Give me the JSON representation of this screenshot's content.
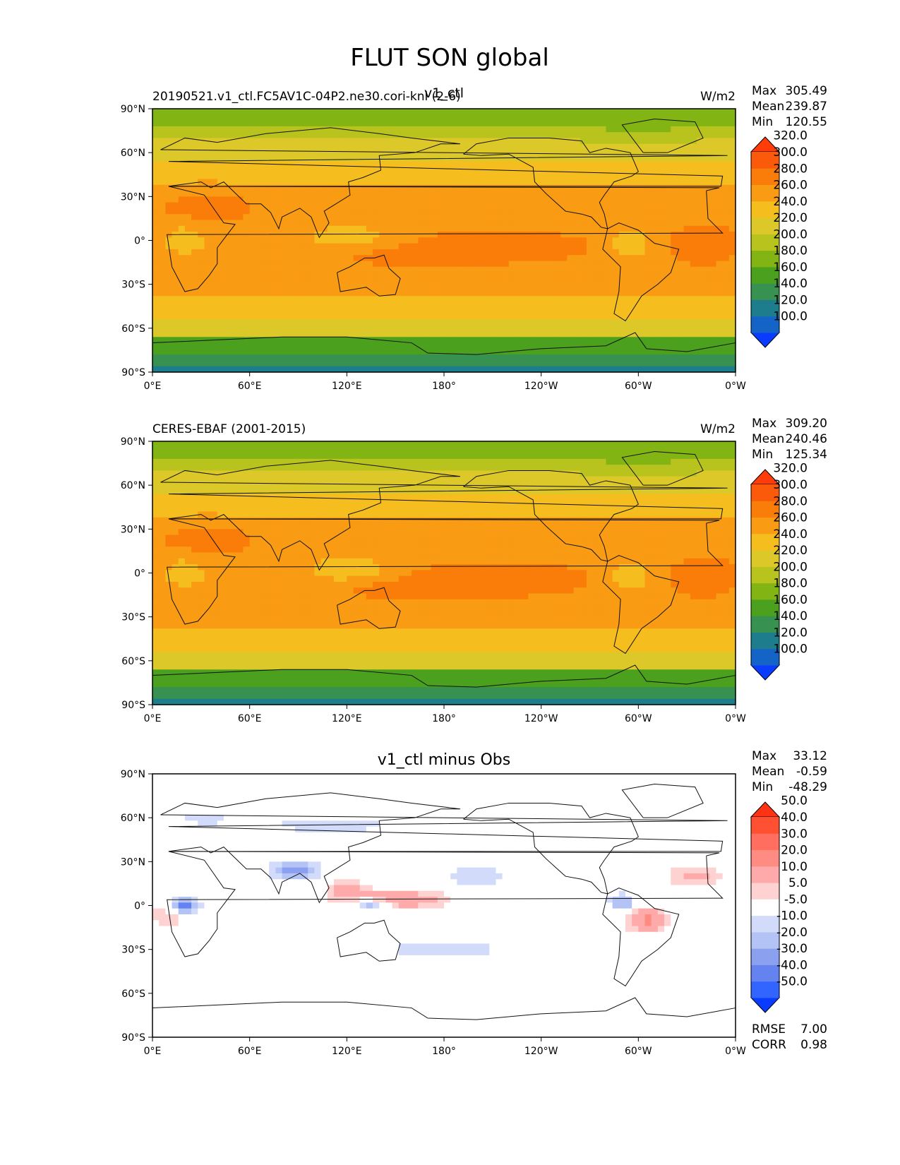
{
  "figure_title": "FLUT SON global",
  "axis": {
    "lat_ticks": [
      "90°N",
      "60°N",
      "30°N",
      "0°",
      "30°S",
      "60°S",
      "90°S"
    ],
    "lon_ticks": [
      "0°E",
      "60°E",
      "120°E",
      "180°",
      "120°W",
      "60°W",
      "0°W"
    ]
  },
  "stat_labels": {
    "max": "Max",
    "mean": "Mean",
    "min": "Min",
    "rmse": "RMSE",
    "corr": "CORR"
  },
  "colors": {
    "abs_palette": [
      "#0a3cff",
      "#1464c8",
      "#1e7d8c",
      "#379150",
      "#4ba01e",
      "#82b414",
      "#b9c31e",
      "#dcc828",
      "#f5be1e",
      "#fa9b14",
      "#fa7d0a",
      "#fa5a0a",
      "#ff3c0a"
    ],
    "diff_palette": [
      "#0a3cff",
      "#3264ff",
      "#6482f0",
      "#8ca0f0",
      "#b4c3f5",
      "#d2dcfa",
      "#ffffff",
      "#ffd2d2",
      "#ffaaaa",
      "#ff8c82",
      "#ff6e5f",
      "#ff5032",
      "#ff3214"
    ]
  },
  "chart_data": [
    {
      "type": "heatmap",
      "panel": "test",
      "title_left": "20190521.v1_ctl.FC5AV1C-04P2.ne30.cori-knl (2-6)",
      "title_center": "v1_ctl",
      "units": "W/m2",
      "stats": {
        "max": "305.49",
        "mean": "239.87",
        "min": "120.55"
      },
      "colorbar_levels": [
        "100.0",
        "120.0",
        "140.0",
        "160.0",
        "180.0",
        "200.0",
        "220.0",
        "240.0",
        "260.0",
        "280.0",
        "300.0",
        "320.0"
      ],
      "xlim": [
        0,
        360
      ],
      "ylim": [
        -90,
        90
      ]
    },
    {
      "type": "heatmap",
      "panel": "reference",
      "title_left": "CERES-EBAF (2001-2015)",
      "units": "W/m2",
      "stats": {
        "max": "309.20",
        "mean": "240.46",
        "min": "125.34"
      },
      "colorbar_levels": [
        "100.0",
        "120.0",
        "140.0",
        "160.0",
        "180.0",
        "200.0",
        "220.0",
        "240.0",
        "260.0",
        "280.0",
        "300.0",
        "320.0"
      ],
      "xlim": [
        0,
        360
      ],
      "ylim": [
        -90,
        90
      ]
    },
    {
      "type": "heatmap",
      "panel": "difference",
      "title_center": "v1_ctl minus Obs",
      "stats": {
        "max": "33.12",
        "mean": "-0.59",
        "min": "-48.29",
        "rmse": "7.00",
        "corr": "0.98"
      },
      "colorbar_levels": [
        "-50.0",
        "-40.0",
        "-30.0",
        "-20.0",
        "-10.0",
        "-5.0",
        "5.0",
        "10.0",
        "20.0",
        "30.0",
        "40.0",
        "50.0"
      ],
      "xlim": [
        0,
        360
      ],
      "ylim": [
        -90,
        90
      ]
    }
  ]
}
